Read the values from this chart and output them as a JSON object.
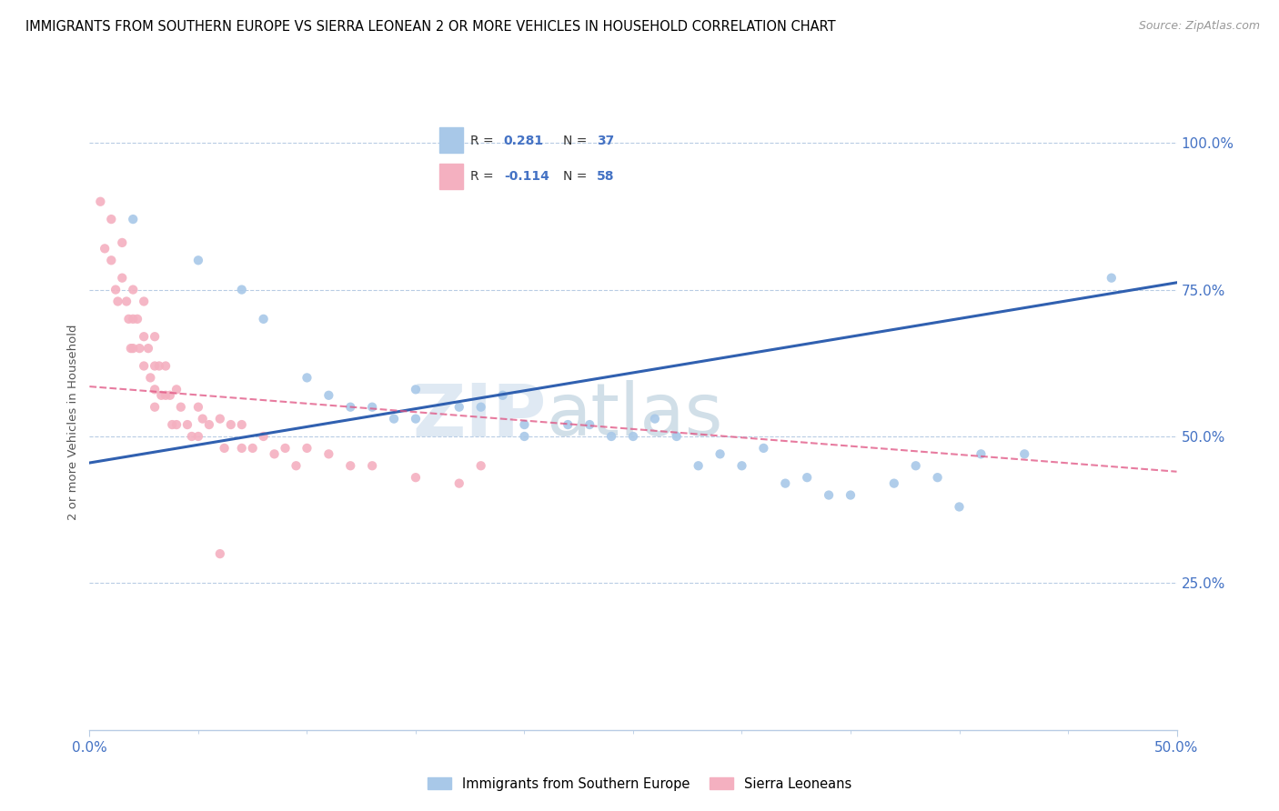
{
  "title": "IMMIGRANTS FROM SOUTHERN EUROPE VS SIERRA LEONEAN 2 OR MORE VEHICLES IN HOUSEHOLD CORRELATION CHART",
  "source": "Source: ZipAtlas.com",
  "ylabel": "2 or more Vehicles in Household",
  "ytick_vals": [
    0.25,
    0.5,
    0.75,
    1.0
  ],
  "ytick_labels": [
    "25.0%",
    "50.0%",
    "75.0%",
    "100.0%"
  ],
  "xlim": [
    0.0,
    0.5
  ],
  "ylim": [
    0.0,
    1.05
  ],
  "legend1_R": "0.281",
  "legend1_N": "37",
  "legend2_R": "-0.114",
  "legend2_N": "58",
  "blue_color": "#a8c8e8",
  "pink_color": "#f4b0c0",
  "blue_line_color": "#3060b0",
  "pink_line_color": "#e05080",
  "blue_scatter_x": [
    0.02,
    0.05,
    0.07,
    0.08,
    0.1,
    0.11,
    0.12,
    0.13,
    0.14,
    0.15,
    0.15,
    0.17,
    0.18,
    0.19,
    0.2,
    0.2,
    0.22,
    0.23,
    0.24,
    0.25,
    0.26,
    0.27,
    0.28,
    0.29,
    0.3,
    0.31,
    0.32,
    0.33,
    0.34,
    0.35,
    0.37,
    0.38,
    0.39,
    0.4,
    0.41,
    0.43,
    0.47
  ],
  "blue_scatter_y": [
    0.87,
    0.8,
    0.75,
    0.7,
    0.6,
    0.57,
    0.55,
    0.55,
    0.53,
    0.58,
    0.53,
    0.55,
    0.55,
    0.57,
    0.52,
    0.5,
    0.52,
    0.52,
    0.5,
    0.5,
    0.53,
    0.5,
    0.45,
    0.47,
    0.45,
    0.48,
    0.42,
    0.43,
    0.4,
    0.4,
    0.42,
    0.45,
    0.43,
    0.38,
    0.47,
    0.47,
    0.77
  ],
  "pink_scatter_x": [
    0.005,
    0.007,
    0.01,
    0.01,
    0.012,
    0.013,
    0.015,
    0.015,
    0.017,
    0.018,
    0.019,
    0.02,
    0.02,
    0.02,
    0.022,
    0.023,
    0.025,
    0.025,
    0.025,
    0.027,
    0.028,
    0.03,
    0.03,
    0.03,
    0.03,
    0.032,
    0.033,
    0.035,
    0.035,
    0.037,
    0.038,
    0.04,
    0.04,
    0.042,
    0.045,
    0.047,
    0.05,
    0.05,
    0.052,
    0.055,
    0.06,
    0.062,
    0.065,
    0.07,
    0.07,
    0.075,
    0.08,
    0.085,
    0.09,
    0.095,
    0.1,
    0.11,
    0.12,
    0.13,
    0.15,
    0.17,
    0.18,
    0.06
  ],
  "pink_scatter_y": [
    0.9,
    0.82,
    0.87,
    0.8,
    0.75,
    0.73,
    0.83,
    0.77,
    0.73,
    0.7,
    0.65,
    0.75,
    0.7,
    0.65,
    0.7,
    0.65,
    0.73,
    0.67,
    0.62,
    0.65,
    0.6,
    0.67,
    0.62,
    0.58,
    0.55,
    0.62,
    0.57,
    0.62,
    0.57,
    0.57,
    0.52,
    0.58,
    0.52,
    0.55,
    0.52,
    0.5,
    0.55,
    0.5,
    0.53,
    0.52,
    0.53,
    0.48,
    0.52,
    0.52,
    0.48,
    0.48,
    0.5,
    0.47,
    0.48,
    0.45,
    0.48,
    0.47,
    0.45,
    0.45,
    0.43,
    0.42,
    0.45,
    0.3
  ],
  "blue_trend_x": [
    0.0,
    0.5
  ],
  "blue_trend_y": [
    0.455,
    0.762
  ],
  "pink_trend_x": [
    0.0,
    0.5
  ],
  "pink_trend_y": [
    0.585,
    0.44
  ],
  "watermark_zip": "ZIP",
  "watermark_atlas": "atlas",
  "legend_label1": "Immigrants from Southern Europe",
  "legend_label2": "Sierra Leoneans"
}
